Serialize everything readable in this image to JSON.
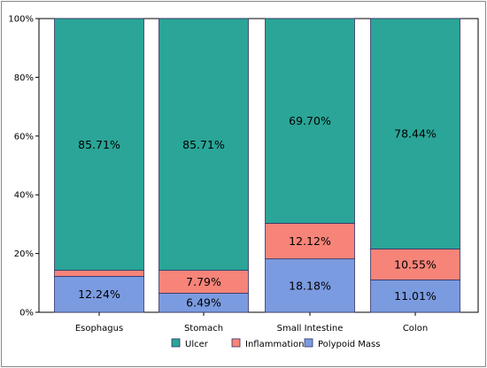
{
  "chart_data": {
    "type": "bar",
    "stacked": true,
    "title": "",
    "xlabel": "",
    "ylabel": "",
    "ylim": [
      0,
      100
    ],
    "y_ticks": [
      "0%",
      "20%",
      "40%",
      "60%",
      "80%",
      "100%"
    ],
    "categories": [
      "Esophagus",
      "Stomach",
      "Small Intestine",
      "Colon"
    ],
    "series": [
      {
        "name": "Polypoid Mass",
        "color": "#7b9be0",
        "values": [
          12.24,
          6.49,
          18.18,
          11.01
        ],
        "labels": [
          "12.24%",
          "6.49%",
          "18.18%",
          "11.01%"
        ]
      },
      {
        "name": "Inflammation",
        "color": "#f78479",
        "values": [
          2.05,
          7.79,
          12.12,
          10.55
        ],
        "labels": [
          "",
          "7.79%",
          "12.12%",
          "10.55%"
        ]
      },
      {
        "name": "Ulcer",
        "color": "#2aa597",
        "values": [
          85.71,
          85.71,
          69.7,
          78.44
        ],
        "labels": [
          "85.71%",
          "85.71%",
          "69.70%",
          "78.44%"
        ]
      }
    ],
    "legend": {
      "position": "bottom",
      "order": [
        "Ulcer",
        "Inflammation",
        "Polypoid Mass"
      ]
    },
    "grid": false
  }
}
